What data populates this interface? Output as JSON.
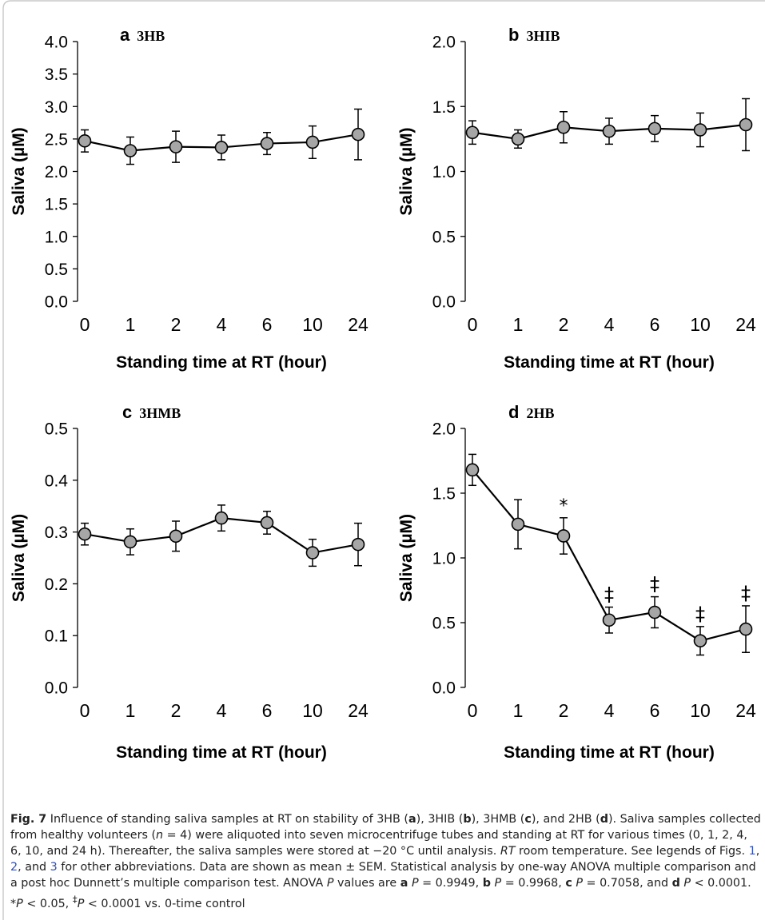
{
  "chart_data": [
    {
      "type": "line",
      "panel_letter": "a",
      "compound": "3HB",
      "x_categories": [
        "0",
        "1",
        "2",
        "4",
        "6",
        "10",
        "24"
      ],
      "y": [
        2.47,
        2.32,
        2.38,
        2.37,
        2.43,
        2.45,
        2.57
      ],
      "error": [
        0.17,
        0.21,
        0.24,
        0.19,
        0.17,
        0.25,
        0.39
      ],
      "significance": [
        "",
        "",
        "",
        "",
        "",
        "",
        ""
      ],
      "ylabel": "Saliva (µM)",
      "xlabel": "Standing time at RT (hour)",
      "ylim": [
        0,
        4.0
      ],
      "yticks": [
        "0.0",
        "0.5",
        "1.0",
        "1.5",
        "2.0",
        "2.5",
        "3.0",
        "3.5",
        "4.0"
      ],
      "grid": false
    },
    {
      "type": "line",
      "panel_letter": "b",
      "compound": "3HIB",
      "x_categories": [
        "0",
        "1",
        "2",
        "4",
        "6",
        "10",
        "24"
      ],
      "y": [
        1.3,
        1.25,
        1.34,
        1.31,
        1.33,
        1.32,
        1.36
      ],
      "error": [
        0.09,
        0.07,
        0.12,
        0.1,
        0.1,
        0.13,
        0.2
      ],
      "significance": [
        "",
        "",
        "",
        "",
        "",
        "",
        ""
      ],
      "ylabel": "Saliva (µM)",
      "xlabel": "Standing time at RT (hour)",
      "ylim": [
        0,
        2.0
      ],
      "yticks": [
        "0.0",
        "0.5",
        "1.0",
        "1.5",
        "2.0"
      ],
      "grid": false
    },
    {
      "type": "line",
      "panel_letter": "c",
      "compound": "3HMB",
      "x_categories": [
        "0",
        "1",
        "2",
        "4",
        "6",
        "10",
        "24"
      ],
      "y": [
        0.296,
        0.281,
        0.292,
        0.327,
        0.318,
        0.26,
        0.276
      ],
      "error": [
        0.021,
        0.025,
        0.029,
        0.025,
        0.022,
        0.026,
        0.041
      ],
      "significance": [
        "",
        "",
        "",
        "",
        "",
        "",
        ""
      ],
      "ylabel": "Saliva (µM)",
      "xlabel": "Standing time at RT (hour)",
      "ylim": [
        0,
        0.5
      ],
      "yticks": [
        "0.0",
        "0.1",
        "0.2",
        "0.3",
        "0.4",
        "0.5"
      ],
      "grid": false
    },
    {
      "type": "line",
      "panel_letter": "d",
      "compound": "2HB",
      "x_categories": [
        "0",
        "1",
        "2",
        "4",
        "6",
        "10",
        "24"
      ],
      "y": [
        1.68,
        1.26,
        1.17,
        0.52,
        0.58,
        0.36,
        0.45
      ],
      "error": [
        0.12,
        0.19,
        0.14,
        0.1,
        0.12,
        0.11,
        0.18
      ],
      "significance": [
        "",
        "",
        "*",
        "‡",
        "‡",
        "‡",
        "‡"
      ],
      "ylabel": "Saliva (µM)",
      "xlabel": "Standing time at RT (hour)",
      "ylim": [
        0,
        2.0
      ],
      "yticks": [
        "0.0",
        "0.5",
        "1.0",
        "1.5",
        "2.0"
      ],
      "grid": false
    }
  ],
  "style": {
    "marker_fill": "#a6a6a6",
    "line_color": "#000000",
    "frame_color": "#c8c8c8",
    "caption_color": "#222222",
    "link_color": "#2f4fb5"
  },
  "caption": {
    "fig_label": "Fig. 7",
    "runs": [
      {
        "t": "  Influence of standing saliva samples at RT on stability of 3HB ("
      },
      {
        "t": "a",
        "b": true
      },
      {
        "t": "), 3HIB ("
      },
      {
        "t": "b",
        "b": true
      },
      {
        "t": "), 3HMB ("
      },
      {
        "t": "c",
        "b": true
      },
      {
        "t": "), and 2HB ("
      },
      {
        "t": "d",
        "b": true
      },
      {
        "t": "). Saliva samples collected from healthy volunteers ("
      },
      {
        "t": "n",
        "i": true
      },
      {
        "t": " = 4) were aliquoted into seven microcentrifuge tubes and standing at RT for various times (0, 1, 2, 4, 6, 10, and 24 h). Thereafter, the saliva samples were stored at −20 °C until analysis. "
      },
      {
        "t": "RT",
        "i": true
      },
      {
        "t": " room temperature. See legends of Figs. "
      },
      {
        "t": "1",
        "link": true
      },
      {
        "t": ", "
      },
      {
        "t": "2",
        "link": true
      },
      {
        "t": ", and "
      },
      {
        "t": "3",
        "link": true
      },
      {
        "t": " for other abbreviations. Data are shown as mean ± SEM. Statistical analysis by one-way ANOVA multiple comparison and a post hoc Dunnett’s multiple comparison test. ANOVA "
      },
      {
        "t": "P",
        "i": true
      },
      {
        "t": " values are "
      },
      {
        "t": "a",
        "b": true
      },
      {
        "t": " "
      },
      {
        "t": "P",
        "i": true
      },
      {
        "t": " = 0.9949, "
      },
      {
        "t": "b",
        "b": true
      },
      {
        "t": " "
      },
      {
        "t": "P",
        "i": true
      },
      {
        "t": " = 0.9968, "
      },
      {
        "t": "c",
        "b": true
      },
      {
        "t": " "
      },
      {
        "t": "P",
        "i": true
      },
      {
        "t": " = 0.7058, and "
      },
      {
        "t": "d",
        "b": true
      },
      {
        "t": " "
      },
      {
        "t": "P",
        "i": true
      },
      {
        "t": " < 0.0001. *"
      },
      {
        "t": "P",
        "i": true
      },
      {
        "t": " < 0.05, "
      },
      {
        "t": "‡",
        "sup": true
      },
      {
        "t": "P",
        "i": true
      },
      {
        "t": " < 0.0001 vs. 0-time control"
      }
    ]
  }
}
